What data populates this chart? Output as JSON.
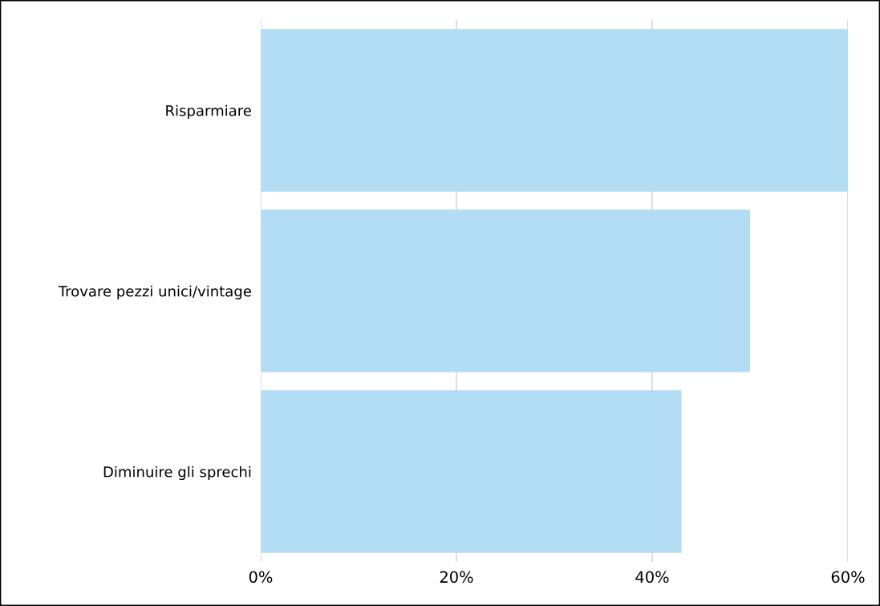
{
  "chart_data": {
    "type": "bar",
    "orientation": "horizontal",
    "categories": [
      "Risparmiare",
      "Trovare pezzi unici/vintage",
      "Diminuire gli sprechi"
    ],
    "values": [
      60,
      50,
      43
    ],
    "color": "#b3dcf5",
    "xlim": [
      0,
      60
    ],
    "xticks": [
      {
        "value": 0,
        "label": "0%"
      },
      {
        "value": 20,
        "label": "20%"
      },
      {
        "value": 40,
        "label": "40%"
      },
      {
        "value": 60,
        "label": "60%"
      }
    ],
    "grid": "x"
  }
}
